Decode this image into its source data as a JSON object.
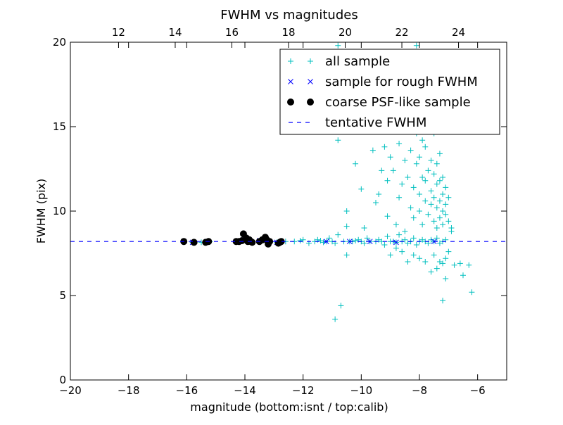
{
  "chart_data": {
    "type": "scatter",
    "title": "FWHM vs magnitudes",
    "xlabel": "magnitude (bottom:isnt / top:calib)",
    "ylabel": "FWHM (pix)",
    "xlim": [
      -20,
      -5
    ],
    "ylim": [
      0,
      20
    ],
    "top_xlim": [
      10.3,
      25.7
    ],
    "xticks": [
      "−20",
      "−18",
      "−16",
      "−14",
      "−12",
      "−10",
      "−8",
      "−6"
    ],
    "xtick_values": [
      -20,
      -18,
      -16,
      -14,
      -12,
      -10,
      -8,
      -6
    ],
    "yticks": [
      "0",
      "5",
      "10",
      "15",
      "20"
    ],
    "ytick_values": [
      0,
      5,
      10,
      15,
      20
    ],
    "top_xticks": [
      "12",
      "14",
      "16",
      "18",
      "20",
      "22",
      "24"
    ],
    "top_xtick_values": [
      12,
      14,
      16,
      18,
      20,
      22,
      24
    ],
    "grid": false,
    "legend_position": "top-right",
    "series": [
      {
        "name": "all sample",
        "marker": "plus",
        "color": "#00bfbf",
        "points": [
          [
            -16.1,
            8.2
          ],
          [
            -15.8,
            8.15
          ],
          [
            -15.5,
            8.15
          ],
          [
            -15.3,
            8.2
          ],
          [
            -15.2,
            8.2
          ],
          [
            -14.3,
            8.2
          ],
          [
            -14.1,
            8.25
          ],
          [
            -14.0,
            8.3
          ],
          [
            -13.9,
            8.2
          ],
          [
            -13.8,
            8.2
          ],
          [
            -13.5,
            8.25
          ],
          [
            -13.3,
            8.3
          ],
          [
            -13.2,
            8.2
          ],
          [
            -12.9,
            8.15
          ],
          [
            -12.8,
            8.2
          ],
          [
            -12.6,
            8.2
          ],
          [
            -12.3,
            8.2
          ],
          [
            -12.1,
            8.25
          ],
          [
            -12.0,
            8.3
          ],
          [
            -11.8,
            8.1
          ],
          [
            -11.6,
            8.2
          ],
          [
            -11.5,
            8.3
          ],
          [
            -11.4,
            8.25
          ],
          [
            -11.3,
            8.15
          ],
          [
            -11.2,
            8.2
          ],
          [
            -11.1,
            8.4
          ],
          [
            -11.0,
            8.2
          ],
          [
            -10.9,
            8.1
          ],
          [
            -10.8,
            8.6
          ],
          [
            -10.6,
            8.2
          ],
          [
            -10.5,
            9.1
          ],
          [
            -10.5,
            7.4
          ],
          [
            -10.4,
            8.2
          ],
          [
            -10.3,
            8.2
          ],
          [
            -10.2,
            8.25
          ],
          [
            -10.1,
            8.3
          ],
          [
            -10.0,
            8.2
          ],
          [
            -9.9,
            8.1
          ],
          [
            -9.8,
            8.4
          ],
          [
            -9.7,
            8.2
          ],
          [
            -9.5,
            8.2
          ],
          [
            -9.4,
            8.3
          ],
          [
            -9.3,
            8.2
          ],
          [
            -9.2,
            8.0
          ],
          [
            -9.1,
            8.5
          ],
          [
            -9.0,
            8.2
          ],
          [
            -8.9,
            8.2
          ],
          [
            -8.8,
            8.15
          ],
          [
            -8.7,
            8.6
          ],
          [
            -8.6,
            8.2
          ],
          [
            -8.5,
            8.3
          ],
          [
            -8.4,
            8.1
          ],
          [
            -8.3,
            8.2
          ],
          [
            -8.2,
            8.4
          ],
          [
            -8.1,
            8.0
          ],
          [
            -8.0,
            8.2
          ],
          [
            -7.9,
            8.3
          ],
          [
            -7.8,
            8.2
          ],
          [
            -7.7,
            8.1
          ],
          [
            -7.6,
            8.3
          ],
          [
            -7.5,
            8.2
          ],
          [
            -7.4,
            8.4
          ],
          [
            -7.3,
            8.1
          ],
          [
            -7.2,
            8.2
          ],
          [
            -7.1,
            8.3
          ],
          [
            -10.7,
            4.4
          ],
          [
            -10.9,
            3.6
          ],
          [
            -10.8,
            19.8
          ],
          [
            -10.8,
            14.2
          ],
          [
            -10.6,
            19.3
          ],
          [
            -10.5,
            10.0
          ],
          [
            -10.2,
            12.8
          ],
          [
            -10.0,
            11.3
          ],
          [
            -9.9,
            9.0
          ],
          [
            -9.8,
            15.5
          ],
          [
            -9.6,
            13.6
          ],
          [
            -9.5,
            10.5
          ],
          [
            -9.4,
            11.0
          ],
          [
            -9.3,
            12.4
          ],
          [
            -9.2,
            13.8
          ],
          [
            -9.1,
            9.7
          ],
          [
            -9.1,
            11.8
          ],
          [
            -9.0,
            13.2
          ],
          [
            -8.9,
            12.4
          ],
          [
            -8.9,
            15.8
          ],
          [
            -8.8,
            9.2
          ],
          [
            -8.7,
            10.8
          ],
          [
            -8.7,
            14.0
          ],
          [
            -8.6,
            11.6
          ],
          [
            -8.5,
            13.0
          ],
          [
            -8.5,
            8.8
          ],
          [
            -8.4,
            12.0
          ],
          [
            -8.4,
            15.0
          ],
          [
            -8.3,
            10.2
          ],
          [
            -8.3,
            13.6
          ],
          [
            -8.2,
            9.6
          ],
          [
            -8.2,
            11.4
          ],
          [
            -8.1,
            12.8
          ],
          [
            -8.1,
            14.6
          ],
          [
            -8.0,
            10.0
          ],
          [
            -8.0,
            11.0
          ],
          [
            -8.0,
            13.2
          ],
          [
            -7.9,
            9.2
          ],
          [
            -7.9,
            12.0
          ],
          [
            -7.9,
            14.2
          ],
          [
            -7.8,
            10.6
          ],
          [
            -7.8,
            11.8
          ],
          [
            -7.8,
            13.8
          ],
          [
            -7.7,
            9.8
          ],
          [
            -7.7,
            12.4
          ],
          [
            -7.7,
            15.4
          ],
          [
            -7.6,
            10.4
          ],
          [
            -7.6,
            11.2
          ],
          [
            -7.6,
            13.0
          ],
          [
            -7.5,
            9.4
          ],
          [
            -7.5,
            10.8
          ],
          [
            -7.5,
            12.2
          ],
          [
            -7.5,
            14.6
          ],
          [
            -7.4,
            9.0
          ],
          [
            -7.4,
            10.2
          ],
          [
            -7.4,
            11.6
          ],
          [
            -7.4,
            12.8
          ],
          [
            -7.3,
            9.6
          ],
          [
            -7.3,
            10.6
          ],
          [
            -7.3,
            11.8
          ],
          [
            -7.3,
            13.4
          ],
          [
            -7.2,
            9.2
          ],
          [
            -7.2,
            10.0
          ],
          [
            -7.2,
            11.0
          ],
          [
            -7.2,
            12.0
          ],
          [
            -7.1,
            9.8
          ],
          [
            -7.1,
            10.4
          ],
          [
            -7.1,
            11.4
          ],
          [
            -7.0,
            9.4
          ],
          [
            -7.0,
            10.8
          ],
          [
            -6.9,
            9.0
          ],
          [
            -6.9,
            8.8
          ],
          [
            -7.0,
            7.6
          ],
          [
            -7.1,
            7.2
          ],
          [
            -7.2,
            6.9
          ],
          [
            -7.3,
            7.0
          ],
          [
            -7.4,
            6.6
          ],
          [
            -7.5,
            7.4
          ],
          [
            -7.6,
            6.4
          ],
          [
            -7.8,
            7.0
          ],
          [
            -8.0,
            7.2
          ],
          [
            -8.2,
            7.4
          ],
          [
            -8.4,
            7.0
          ],
          [
            -8.6,
            7.6
          ],
          [
            -8.8,
            7.8
          ],
          [
            -9.0,
            7.4
          ],
          [
            -6.8,
            6.8
          ],
          [
            -6.6,
            6.9
          ],
          [
            -6.5,
            6.2
          ],
          [
            -6.3,
            6.8
          ],
          [
            -6.2,
            5.2
          ],
          [
            -7.2,
            4.7
          ],
          [
            -7.1,
            6.0
          ],
          [
            -8.1,
            19.8
          ],
          [
            -7.4,
            16.0
          ],
          [
            -7.2,
            15.0
          ],
          [
            -7.6,
            15.6
          ],
          [
            -7.9,
            16.2
          ],
          [
            -8.3,
            15.4
          ],
          [
            -9.2,
            16.0
          ]
        ]
      },
      {
        "name": "sample for rough FWHM",
        "marker": "x",
        "color": "#0000ff",
        "points": [
          [
            -16.1,
            8.2
          ],
          [
            -15.8,
            8.15
          ],
          [
            -15.3,
            8.2
          ],
          [
            -14.3,
            8.2
          ],
          [
            -14.0,
            8.3
          ],
          [
            -13.8,
            8.2
          ],
          [
            -13.5,
            8.25
          ],
          [
            -13.2,
            8.2
          ],
          [
            -12.9,
            8.15
          ],
          [
            -11.2,
            8.2
          ],
          [
            -10.4,
            8.2
          ],
          [
            -9.7,
            8.2
          ],
          [
            -8.8,
            8.15
          ],
          [
            -7.5,
            8.2
          ]
        ]
      },
      {
        "name": "coarse PSF-like sample",
        "marker": "circle",
        "color": "#000000",
        "points": [
          [
            -16.1,
            8.2
          ],
          [
            -15.75,
            8.15
          ],
          [
            -15.35,
            8.15
          ],
          [
            -15.25,
            8.2
          ],
          [
            -14.3,
            8.2
          ],
          [
            -14.2,
            8.2
          ],
          [
            -14.1,
            8.25
          ],
          [
            -14.05,
            8.65
          ],
          [
            -13.95,
            8.4
          ],
          [
            -13.9,
            8.2
          ],
          [
            -13.85,
            8.3
          ],
          [
            -13.8,
            8.2
          ],
          [
            -13.75,
            8.15
          ],
          [
            -13.5,
            8.2
          ],
          [
            -13.4,
            8.3
          ],
          [
            -13.3,
            8.45
          ],
          [
            -13.25,
            8.3
          ],
          [
            -13.2,
            8.05
          ],
          [
            -13.15,
            8.2
          ],
          [
            -12.85,
            8.1
          ],
          [
            -12.8,
            8.15
          ],
          [
            -12.75,
            8.2
          ]
        ]
      },
      {
        "name": "tentative FWHM",
        "marker": "dashed-line",
        "color": "#0000ff",
        "value": 8.2
      }
    ]
  }
}
